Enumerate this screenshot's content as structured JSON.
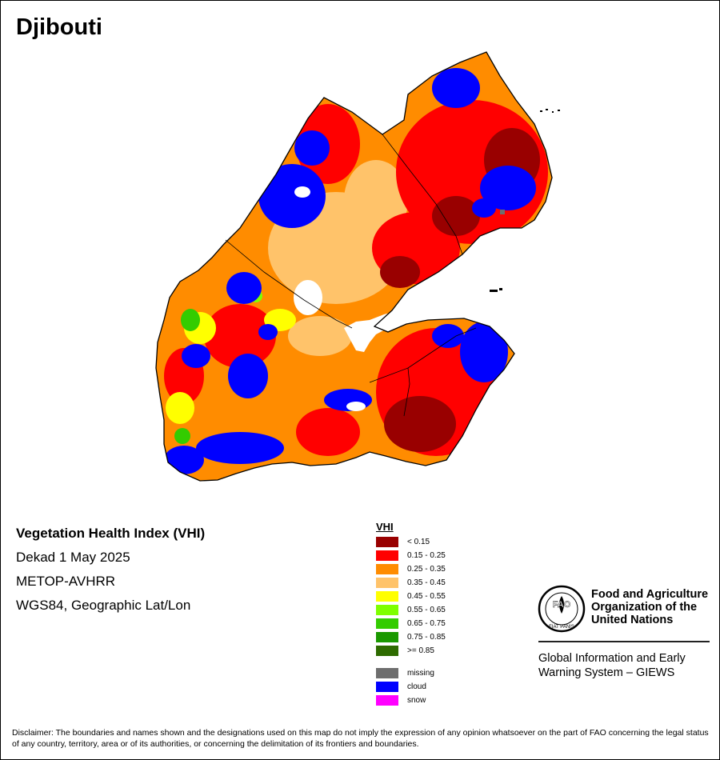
{
  "map": {
    "title": "Djibouti",
    "info": {
      "index_name": "Vegetation Health Index (VHI)",
      "period": "Dekad 1 May 2025",
      "sensor": "METOP-AVHRR",
      "projection": "WGS84, Geographic Lat/Lon"
    },
    "legend": {
      "title": "VHI",
      "classes": [
        {
          "label": "< 0.15",
          "color": "#990000"
        },
        {
          "label": "0.15 - 0.25",
          "color": "#ff0000"
        },
        {
          "label": "0.25 - 0.35",
          "color": "#ff8c00"
        },
        {
          "label": "0.35 - 0.45",
          "color": "#ffc36a"
        },
        {
          "label": "0.45 - 0.55",
          "color": "#ffff00"
        },
        {
          "label": "0.55 - 0.65",
          "color": "#7fff00"
        },
        {
          "label": "0.65 - 0.75",
          "color": "#33cc00"
        },
        {
          "label": "0.75 - 0.85",
          "color": "#1a9900"
        },
        {
          "label": ">= 0.85",
          "color": "#2e6b00"
        }
      ],
      "special": [
        {
          "label": "missing",
          "color": "#6e6e6e"
        },
        {
          "label": "cloud",
          "color": "#0000ff"
        },
        {
          "label": "snow",
          "color": "#ff00ff"
        }
      ]
    },
    "colors": {
      "land_base": "#ff8c00",
      "water": "#ffffff",
      "border": "#000000"
    }
  },
  "organization": {
    "name_line1": "Food and Agriculture",
    "name_line2": "Organization of the",
    "name_line3": "United Nations",
    "logo_letters": "FAO",
    "logo_motto": "FIAT PANIS",
    "giews_line1": "Global Information and Early",
    "giews_line2": "Warning System – GIEWS"
  },
  "disclaimer": "Disclaimer: The boundaries and names shown and the designations used on this map do not imply the expression of any opinion whatsoever on the part of FAO concerning the legal status of any country, territory, area or of its authorities, or concerning the delimitation of its frontiers and boundaries."
}
